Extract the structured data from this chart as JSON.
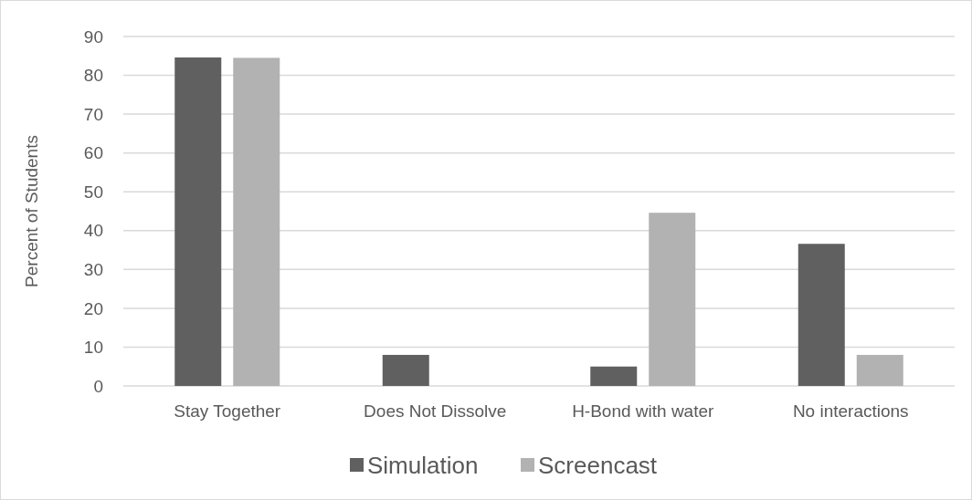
{
  "chart_data": {
    "type": "bar",
    "ylabel": "Percent of Students",
    "categories": [
      "Stay Together",
      "Does Not Dissolve",
      "H-Bond with water",
      "No interactions"
    ],
    "series": [
      {
        "name": "Simulation",
        "color": "#606060",
        "values": [
          84.6,
          8.0,
          5.0,
          36.6
        ]
      },
      {
        "name": "Screencast",
        "color": "#b2b2b2",
        "values": [
          84.5,
          0,
          44.6,
          8.0
        ]
      }
    ],
    "ylim": [
      0,
      90
    ],
    "yticks": [
      0,
      10,
      20,
      30,
      40,
      50,
      60,
      70,
      80,
      90
    ],
    "grid": "y",
    "legend": "bottom"
  }
}
